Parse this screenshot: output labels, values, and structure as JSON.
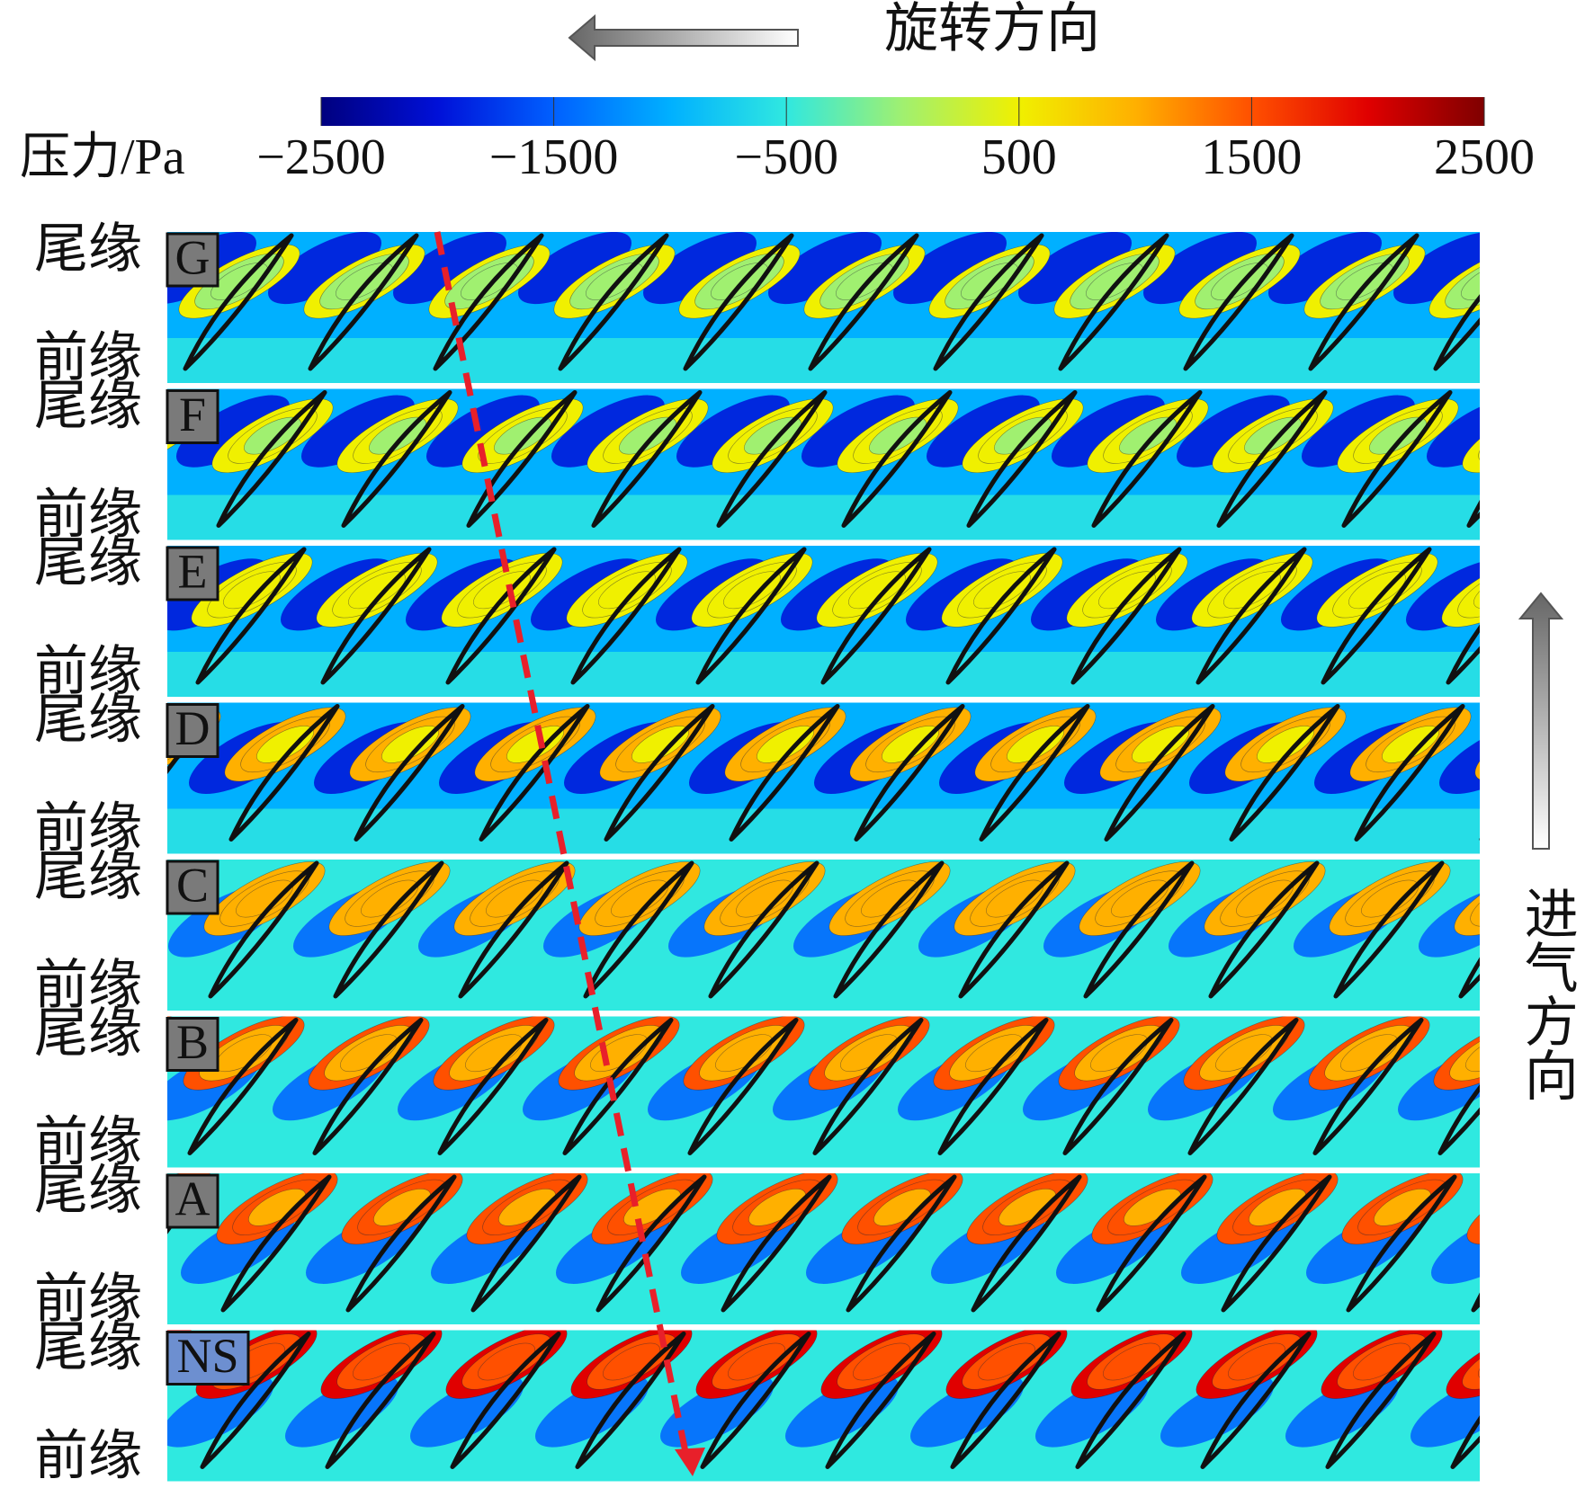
{
  "chart_data": {
    "type": "contour",
    "rotation_label": "旋转方向",
    "inflow_label": "进气方向",
    "trailing_edge_label": "尾缘",
    "leading_edge_label": "前缘",
    "colorbar": {
      "label": "压力/Pa",
      "clim": [
        -2500,
        2500
      ],
      "ticks": [
        {
          "value": -2500,
          "label": "−2500"
        },
        {
          "value": -1500,
          "label": "−1500"
        },
        {
          "value": -500,
          "label": "−500"
        },
        500,
        1500,
        2500
      ],
      "colormap": [
        "#00007f",
        "#0010d8",
        "#0060ff",
        "#00b0ff",
        "#30e8e0",
        "#a0f070",
        "#f0f000",
        "#ffb000",
        "#ff5000",
        "#e00000",
        "#7f0000"
      ]
    },
    "panels": [
      "G",
      "F",
      "E",
      "D",
      "C",
      "B",
      "A",
      "NS"
    ]
  }
}
